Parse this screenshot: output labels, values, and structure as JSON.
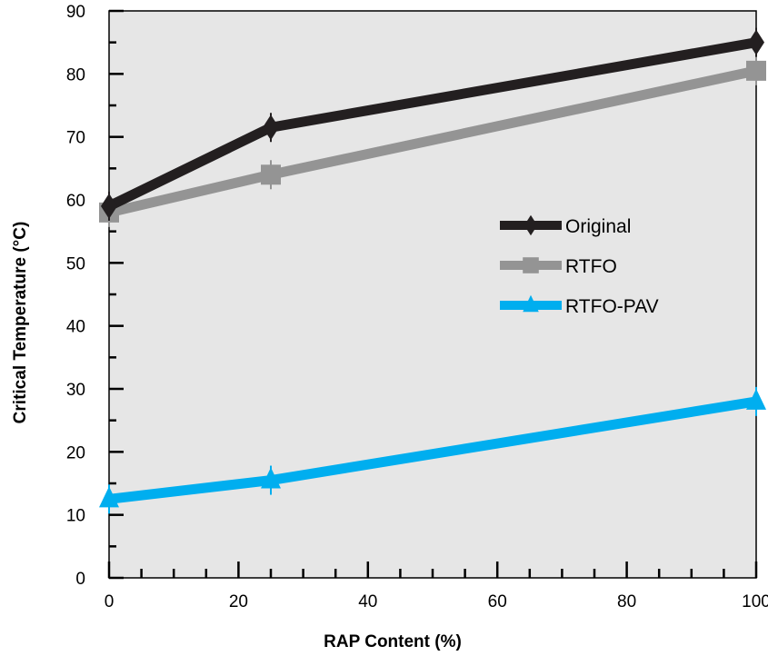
{
  "chart_data": {
    "type": "line",
    "xlabel": "RAP Content (%)",
    "ylabel": "Critical Temperature (°C)",
    "xlim": [
      0,
      100
    ],
    "ylim": [
      0,
      90
    ],
    "xticks": [
      0,
      20,
      40,
      60,
      80,
      100
    ],
    "yticks": [
      0,
      10,
      20,
      30,
      40,
      50,
      60,
      70,
      80,
      90
    ],
    "x": [
      0,
      25,
      100
    ],
    "plot_background": "#e6e6e6",
    "grid": false,
    "legend_position": "center-right",
    "series": [
      {
        "name": "Original",
        "values": [
          59.0,
          71.5,
          85.0
        ],
        "color": "#231f20",
        "marker": "diamond"
      },
      {
        "name": "RTFO",
        "values": [
          58.0,
          64.0,
          80.5
        ],
        "color": "#949494",
        "marker": "square"
      },
      {
        "name": "RTFO-PAV",
        "values": [
          12.5,
          15.5,
          28.0
        ],
        "color": "#00aeef",
        "marker": "triangle"
      }
    ]
  }
}
